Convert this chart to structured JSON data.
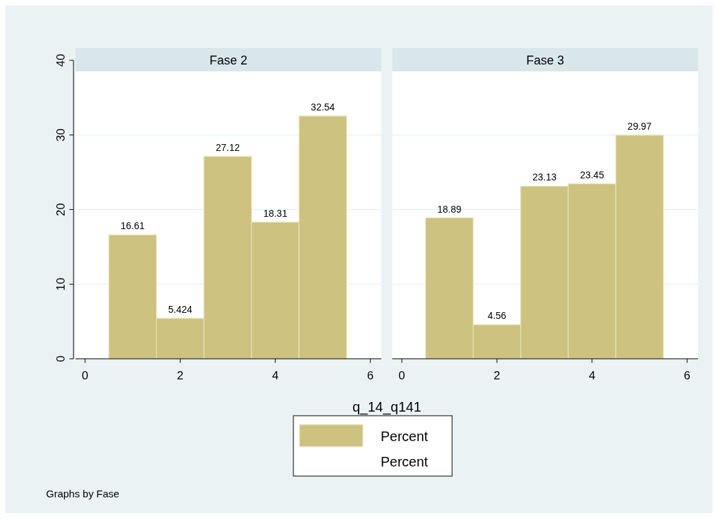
{
  "chart_data": [
    {
      "type": "histogram",
      "title": "Fase 2",
      "xlabel": "q_14_q141",
      "bins": [
        0.5,
        1.5,
        2.5,
        3.5,
        4.5,
        5.5
      ],
      "series": [
        {
          "name": "Percent",
          "color": "#cdc27f",
          "values": [
            16.61,
            5.424,
            27.12,
            18.31,
            32.54
          ]
        }
      ],
      "data_labels": true,
      "xlim": [
        -0.2,
        6.23
      ],
      "ylim": [
        0,
        40
      ],
      "xticks": [
        0,
        2,
        4,
        6
      ],
      "yticks": [
        0,
        10,
        20,
        30,
        40
      ],
      "grid": "y",
      "legend": "bottom",
      "annotations": [
        "Percent",
        "Graphs by Fase"
      ]
    },
    {
      "type": "histogram",
      "title": "Fase 3",
      "bins": [
        0.5,
        1.5,
        2.5,
        3.5,
        4.5,
        5.5
      ],
      "series": [
        {
          "color": "#cdc27f",
          "values": [
            18.89,
            4.56,
            23.13,
            23.45,
            29.97
          ]
        }
      ],
      "data_labels": true,
      "xlim": [
        -0.2,
        6.23
      ],
      "ylim": [
        0,
        40
      ],
      "xticks": [
        0,
        2,
        4,
        6
      ],
      "yticks": [
        0,
        10,
        20,
        30,
        40
      ],
      "grid": "y",
      "tick_labels": "x"
    }
  ]
}
